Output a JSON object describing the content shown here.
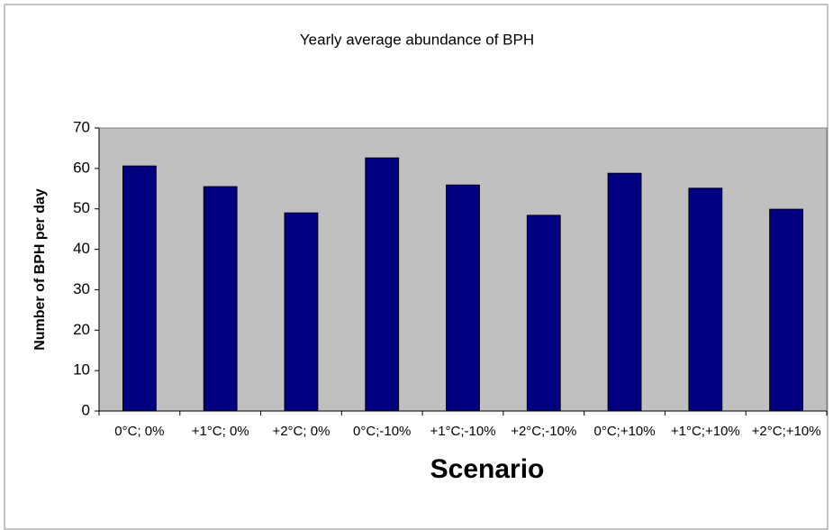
{
  "chart_data": {
    "type": "bar",
    "title": "Yearly average abundance of BPH",
    "x_label": "Scenario",
    "y_label": "Number of BPH per day",
    "categories": [
      "0°C; 0%",
      "+1°C; 0%",
      "+2°C; 0%",
      "0°C;-10%",
      "+1°C;-10%",
      "+2°C;-10%",
      "0°C;+10%",
      "+1°C;+10%",
      "+2°C;+10%"
    ],
    "values": [
      60.6,
      55.5,
      49.0,
      62.6,
      55.9,
      48.4,
      58.8,
      55.1,
      49.9
    ],
    "color": "#000080",
    "plot_background": "#c0c0c0",
    "ylim": [
      0,
      70
    ],
    "yticks": [
      0,
      10,
      20,
      30,
      40,
      50,
      60,
      70
    ],
    "grid": false
  }
}
